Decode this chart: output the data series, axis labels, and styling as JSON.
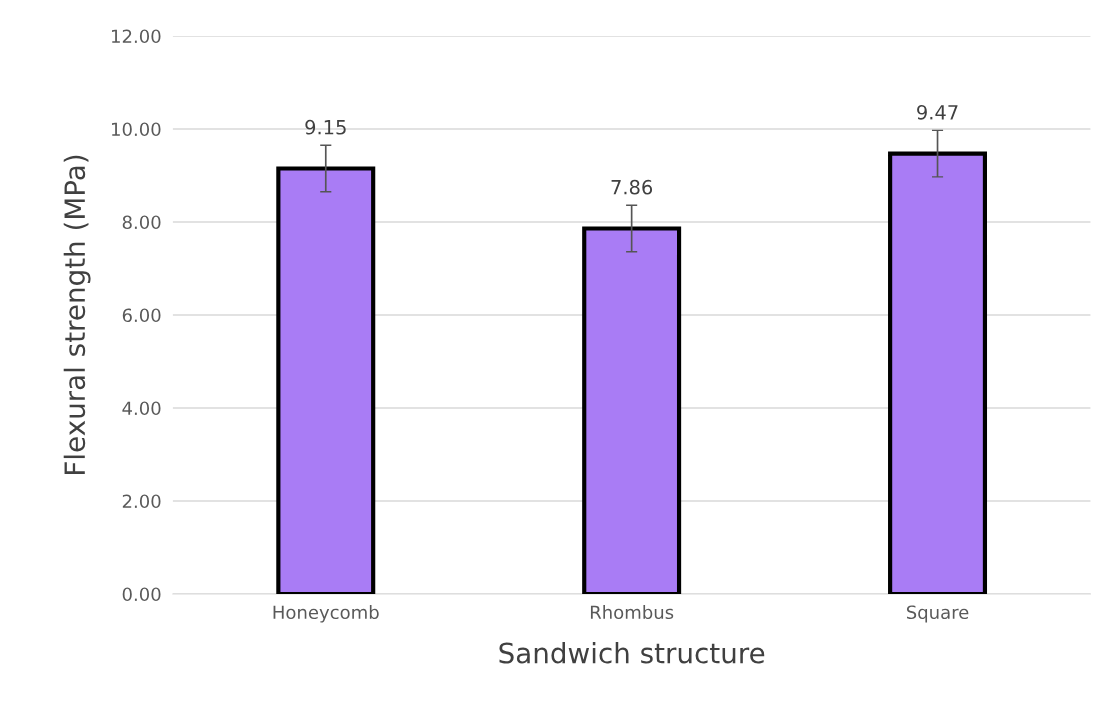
{
  "chart_data": {
    "type": "bar",
    "xlabel": "Sandwich structure",
    "ylabel": "Flexural strength (MPa)",
    "categories": [
      "Honeycomb",
      "Rhombus",
      "Square"
    ],
    "values": [
      9.15,
      7.86,
      9.47
    ],
    "errors": [
      0.5,
      0.5,
      0.5
    ],
    "color": "#a97cf5",
    "data_labels": true,
    "ylim": [
      0,
      12
    ],
    "yticks": [
      {
        "value": 0,
        "label": "0.00"
      },
      {
        "value": 2,
        "label": "2.00"
      },
      {
        "value": 4,
        "label": "4.00"
      },
      {
        "value": 6,
        "label": "6.00"
      },
      {
        "value": 8,
        "label": "8.00"
      },
      {
        "value": 10,
        "label": "10.00"
      },
      {
        "value": 12,
        "label": "12.00"
      }
    ],
    "grid": "y",
    "legend": false
  }
}
